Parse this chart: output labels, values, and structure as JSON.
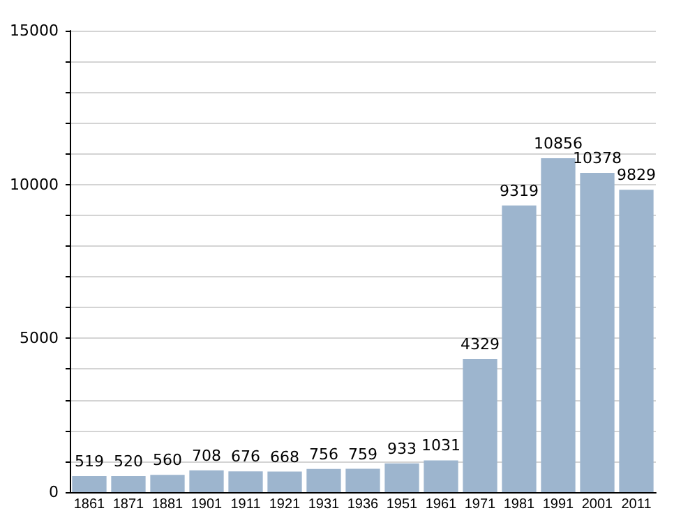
{
  "chart_data": {
    "type": "bar",
    "categories": [
      "1861",
      "1871",
      "1881",
      "1901",
      "1911",
      "1921",
      "1931",
      "1936",
      "1951",
      "1961",
      "1971",
      "1981",
      "1991",
      "2001",
      "2011"
    ],
    "values": [
      519,
      520,
      560,
      708,
      676,
      668,
      756,
      759,
      933,
      1031,
      4329,
      9319,
      10856,
      10378,
      9829
    ],
    "color": "#9db5ce",
    "data_labels": true,
    "grid": "y",
    "ylim": [
      0,
      15000
    ],
    "yticks": [
      0,
      {
        "value": 1000,
        "label": null
      },
      {
        "value": 2000,
        "label": null
      },
      {
        "value": 3000,
        "label": null
      },
      {
        "value": 4000,
        "label": null
      },
      5000,
      {
        "value": 6000,
        "label": null
      },
      {
        "value": 7000,
        "label": null
      },
      {
        "value": 8000,
        "label": null
      },
      {
        "value": 9000,
        "label": null
      },
      10000,
      {
        "value": 11000,
        "label": null
      },
      {
        "value": 12000,
        "label": null
      },
      {
        "value": 13000,
        "label": null
      },
      {
        "value": 14000,
        "label": null
      },
      15000
    ]
  }
}
